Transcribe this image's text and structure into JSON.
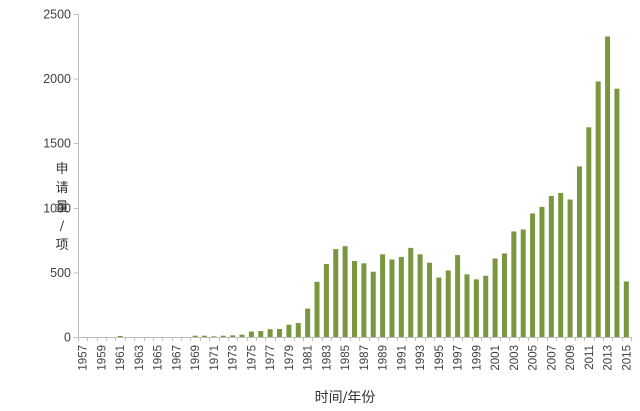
{
  "chart_data": {
    "type": "bar",
    "title": "",
    "xlabel": "时间/年份",
    "ylabel": "申请量/项",
    "categories": [
      1957,
      1958,
      1959,
      1960,
      1961,
      1962,
      1963,
      1964,
      1965,
      1966,
      1967,
      1968,
      1969,
      1970,
      1971,
      1972,
      1973,
      1974,
      1975,
      1976,
      1977,
      1978,
      1979,
      1980,
      1981,
      1982,
      1983,
      1984,
      1985,
      1986,
      1987,
      1988,
      1989,
      1990,
      1991,
      1992,
      1993,
      1994,
      1995,
      1996,
      1997,
      1998,
      1999,
      2000,
      2001,
      2002,
      2003,
      2004,
      2005,
      2006,
      2007,
      2008,
      2009,
      2010,
      2011,
      2012,
      2013,
      2014,
      2015
    ],
    "values": [
      0,
      0,
      0,
      0,
      8,
      0,
      0,
      0,
      0,
      0,
      0,
      0,
      10,
      10,
      5,
      10,
      13,
      18,
      42,
      46,
      60,
      62,
      95,
      108,
      220,
      427,
      565,
      680,
      703,
      588,
      570,
      505,
      640,
      600,
      620,
      690,
      640,
      575,
      460,
      515,
      634,
      485,
      446,
      474,
      608,
      647,
      817,
      832,
      956,
      1007,
      1092,
      1115,
      1064,
      1320,
      1623,
      1978,
      2326,
      1922,
      430
    ],
    "ylim": [
      0,
      2500
    ],
    "yticks": [
      0,
      500,
      1000,
      1500,
      2000,
      2500
    ],
    "xtick_label_interval": 2,
    "grid": false,
    "legend": "none",
    "colors": {
      "bar": "#78973F",
      "axis": "#BFBFBF",
      "tick_text": "#404040"
    }
  }
}
